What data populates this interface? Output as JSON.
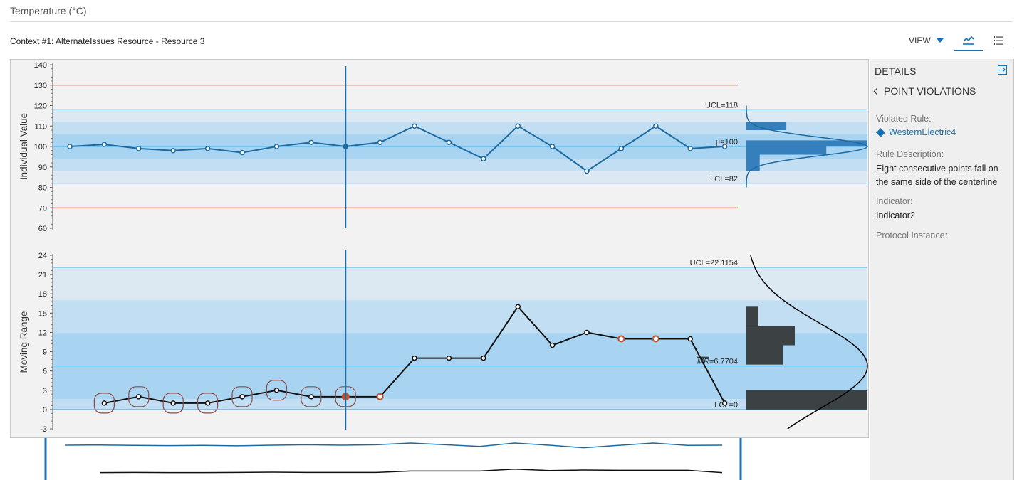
{
  "page": {
    "title": "Temperature (°C)",
    "context": "Context #1: AlternateIssues Resource - Resource 3",
    "view_label": "VIEW"
  },
  "chart_data": [
    {
      "type": "line",
      "ylabel": "Individual Value",
      "ylim": [
        60,
        140
      ],
      "yticks": [
        60,
        70,
        80,
        90,
        100,
        110,
        120,
        130,
        140
      ],
      "values": [
        100,
        101,
        99,
        98,
        99,
        97,
        100,
        102,
        100,
        102,
        110,
        102,
        94,
        110,
        100,
        88,
        99,
        110,
        99,
        100
      ],
      "limits": {
        "ucl": 118,
        "center": 100,
        "lcl": 82,
        "spec_upper": 130,
        "spec_lower": 70
      },
      "limit_labels": {
        "ucl": "UCL=118",
        "center": "µ=100",
        "lcl": "LCL=82"
      },
      "selected_index": 8,
      "histogram": [
        {
          "y0": 108,
          "y1": 112,
          "w": 0.33
        },
        {
          "y0": 100,
          "y1": 103,
          "w": 1.0
        },
        {
          "y0": 96,
          "y1": 100,
          "w": 0.66
        },
        {
          "y0": 92,
          "y1": 96,
          "w": 0.11
        },
        {
          "y0": 88,
          "y1": 92,
          "w": 0.11
        }
      ],
      "colors": {
        "series": "#1c6aa0",
        "spec": "#c0392b",
        "limit": "#4aaee6"
      }
    },
    {
      "type": "line",
      "ylabel": "Moving Range",
      "ylim": [
        -3,
        24
      ],
      "yticks": [
        -3,
        0,
        3,
        6,
        9,
        12,
        15,
        18,
        21,
        24
      ],
      "x_start": 1,
      "values": [
        1,
        2,
        1,
        1,
        2,
        3,
        2,
        2,
        2,
        8,
        8,
        8,
        16,
        10,
        12,
        11,
        11,
        11,
        1
      ],
      "limits": {
        "ucl": 22.1154,
        "center": 6.7704,
        "lcl": 0
      },
      "limit_labels": {
        "ucl": "UCL=22.1154",
        "center_prefix": "MR",
        "center": "=6.7704",
        "lcl": "LCL=0"
      },
      "violations_circled": [
        1,
        2,
        3,
        4,
        5,
        6,
        7,
        8
      ],
      "violation_points": [
        8,
        9,
        16,
        17
      ],
      "selected_index": 8,
      "histogram": [
        {
          "y0": 0,
          "y1": 3,
          "w": 1.0
        },
        {
          "y0": 7,
          "y1": 10,
          "w": 0.3
        },
        {
          "y0": 10,
          "y1": 13,
          "w": 0.4
        },
        {
          "y0": 13,
          "y1": 16,
          "w": 0.1
        }
      ],
      "colors": {
        "series": "#111111",
        "violation": "#c0502a",
        "limit": "#4aaee6"
      }
    }
  ],
  "overview": {
    "individual_values": [
      100,
      101,
      99,
      98,
      99,
      97,
      100,
      102,
      100,
      102,
      110,
      102,
      94,
      110,
      100,
      88,
      99,
      110,
      99,
      100
    ],
    "moving_range_values": [
      1,
      2,
      1,
      1,
      2,
      3,
      2,
      2,
      2,
      8,
      8,
      8,
      16,
      10,
      12,
      11,
      11,
      11,
      1
    ]
  },
  "details": {
    "header": "DETAILS",
    "back_label": "POINT VIOLATIONS",
    "violated_rule_label": "Violated Rule:",
    "violated_rule_value": "WesternElectric4",
    "rule_description_label": "Rule Description:",
    "rule_description_value": "Eight consecutive points fall on the same side of the centerline",
    "indicator_label": "Indicator:",
    "indicator_value": "Indicator2",
    "protocol_label": "Protocol Instance:"
  }
}
